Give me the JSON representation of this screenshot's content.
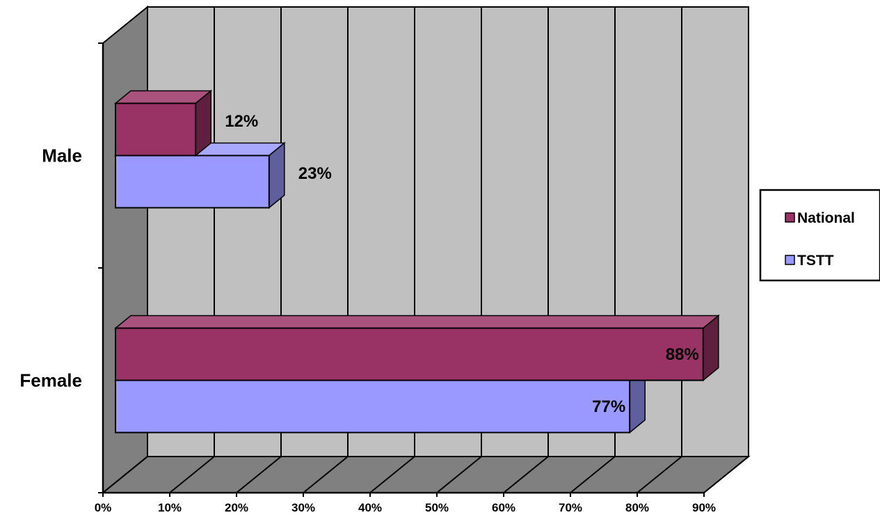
{
  "chart_data": {
    "type": "bar",
    "orientation": "horizontal",
    "style": "3d-clustered",
    "categories": [
      "Male",
      "Female"
    ],
    "series": [
      {
        "name": "National",
        "values": [
          12,
          88
        ],
        "labels": [
          "12%",
          "88%"
        ],
        "color": "#993366"
      },
      {
        "name": "TSTT",
        "values": [
          23,
          77
        ],
        "labels": [
          "23%",
          "77%"
        ],
        "color": "#9999FF"
      }
    ],
    "xlim": [
      0,
      90
    ],
    "xticks": [
      "0%",
      "10%",
      "20%",
      "30%",
      "40%",
      "50%",
      "60%",
      "70%",
      "80%",
      "90%"
    ],
    "grid": true,
    "legend_position": "right",
    "wall_color": "#C0C0C0",
    "floor_color": "#808080"
  }
}
